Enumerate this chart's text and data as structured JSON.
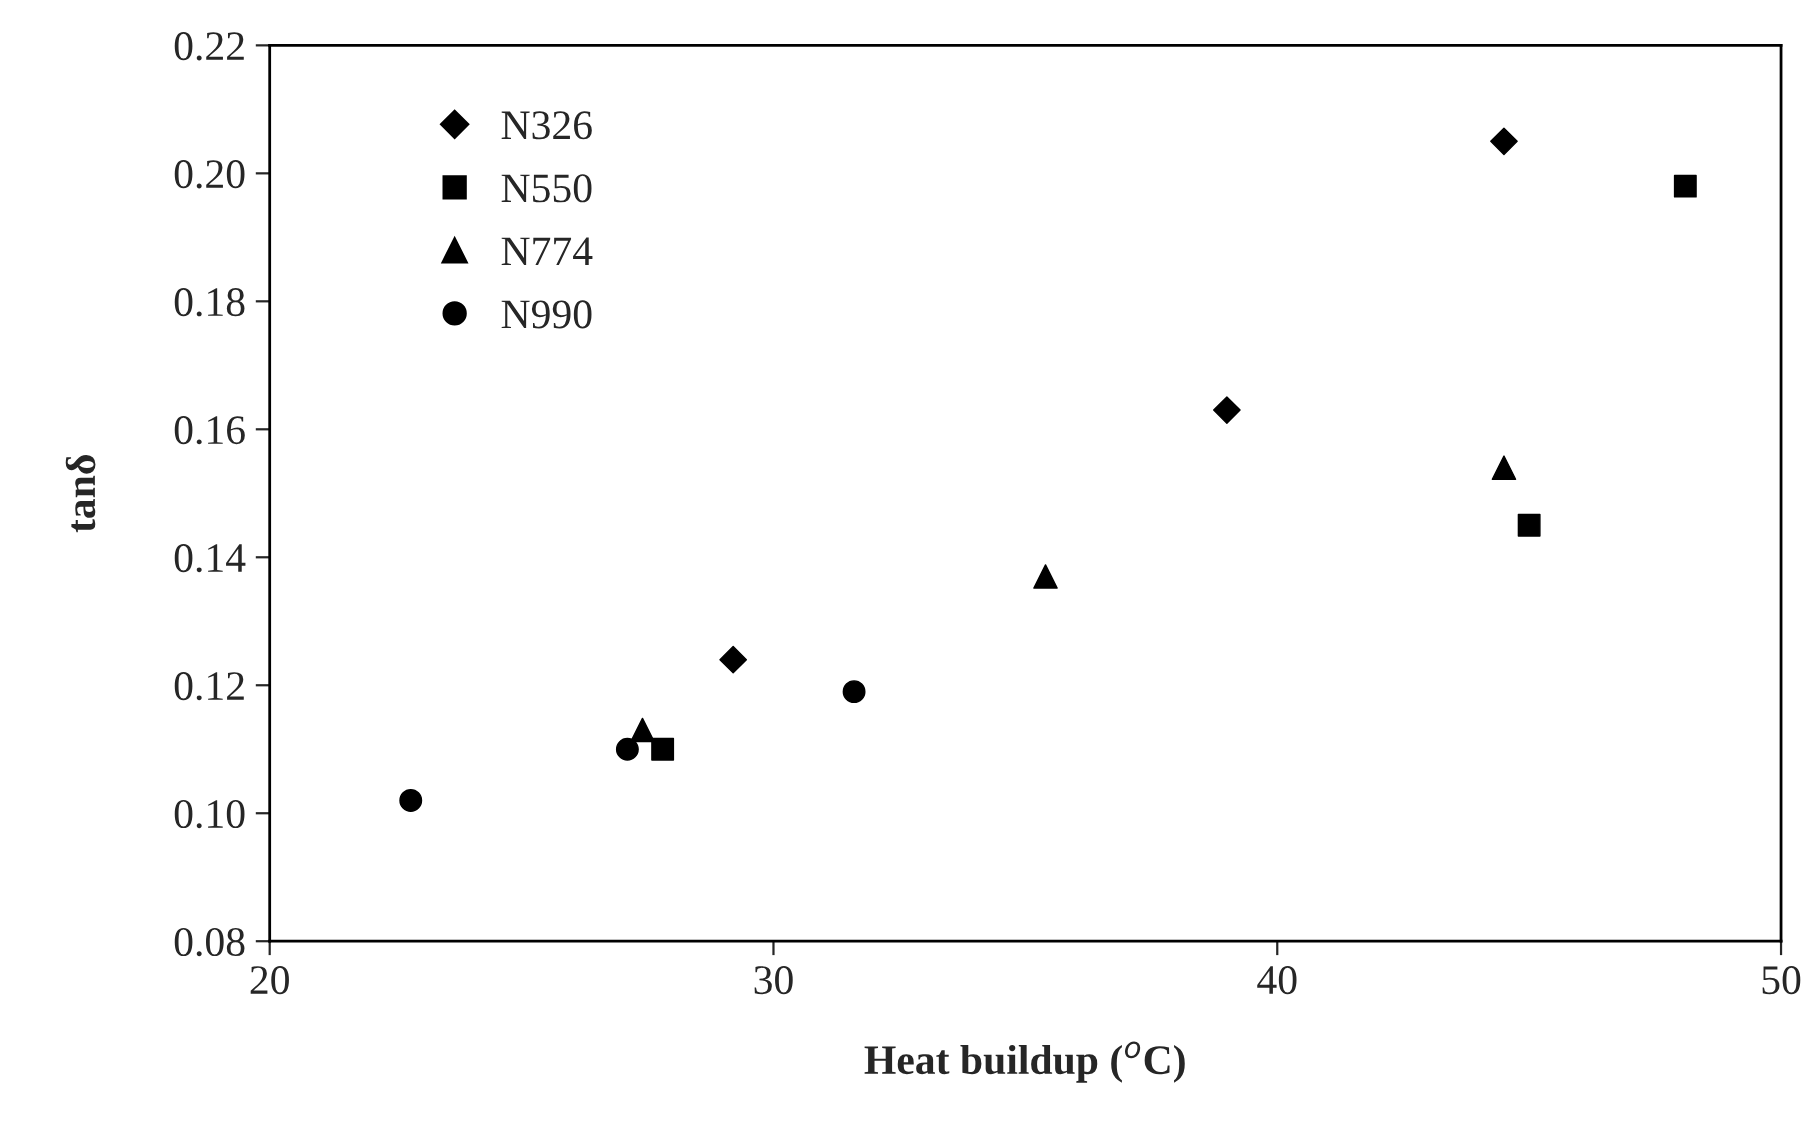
{
  "chart_data": {
    "type": "scatter",
    "xlabel": "Heat buildup ($^{o}$C)",
    "ylabel": "tanδ",
    "xlim": [
      20,
      50
    ],
    "xticks": [
      20,
      30,
      40,
      50
    ],
    "ylim": [
      0.08,
      0.22
    ],
    "yticks": [
      {
        "value": 0.08,
        "label": "0.08"
      },
      {
        "value": 0.1,
        "label": "0.10"
      },
      {
        "value": 0.12,
        "label": "0.12"
      },
      {
        "value": 0.14,
        "label": "0.14"
      },
      {
        "value": 0.16,
        "label": "0.16"
      },
      {
        "value": 0.18,
        "label": "0.18"
      },
      {
        "value": 0.2,
        "label": "0.20"
      },
      {
        "value": 0.22,
        "label": "0.22"
      }
    ],
    "grid": false,
    "legend": "top left",
    "series": [
      {
        "name": "N326",
        "color": "#000000",
        "marker": "diamond",
        "x": [
          29.2,
          39.0,
          44.5
        ],
        "values": [
          0.124,
          0.163,
          0.205
        ]
      },
      {
        "name": "N550",
        "color": "#000000",
        "marker": "square",
        "x": [
          27.8,
          45.0,
          48.1
        ],
        "values": [
          0.11,
          0.145,
          0.198
        ]
      },
      {
        "name": "N774",
        "color": "#000000",
        "marker": "triangle",
        "x": [
          27.4,
          35.4,
          44.5
        ],
        "values": [
          0.113,
          0.137,
          0.154
        ]
      },
      {
        "name": "N990",
        "color": "#000000",
        "marker": "circle",
        "x": [
          22.8,
          27.1,
          31.6
        ],
        "values": [
          0.102,
          0.11,
          0.119
        ]
      }
    ]
  }
}
